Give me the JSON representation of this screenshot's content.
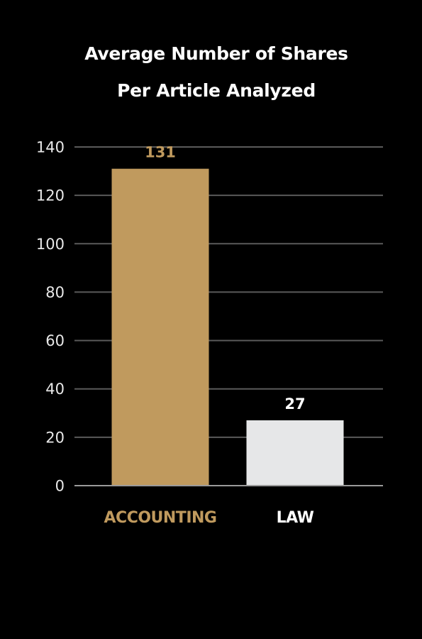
{
  "chart_data": {
    "type": "bar",
    "title_lines": [
      "Average Number of Shares",
      "Per Article Analyzed"
    ],
    "categories": [
      "ACCOUNTING",
      "LAW"
    ],
    "values": [
      131,
      27
    ],
    "data_labels": [
      "131",
      "27"
    ],
    "ylim": [
      0,
      140
    ],
    "yticks": [
      0,
      20,
      40,
      60,
      80,
      100,
      120,
      140
    ],
    "grid": true,
    "bar_colors": [
      "#C09A5E",
      "#E6E7E8"
    ],
    "label_colors": [
      "#C09A5E",
      "#FFFFFF"
    ],
    "category_label_colors": [
      "#C09A5E",
      "#FFFFFF"
    ]
  },
  "colors": {
    "background": "#000000",
    "gridline": "#5a5a5a",
    "axis": "#9a9a9a",
    "tick_text": "#e8e8e8",
    "title_text": "#ffffff"
  }
}
